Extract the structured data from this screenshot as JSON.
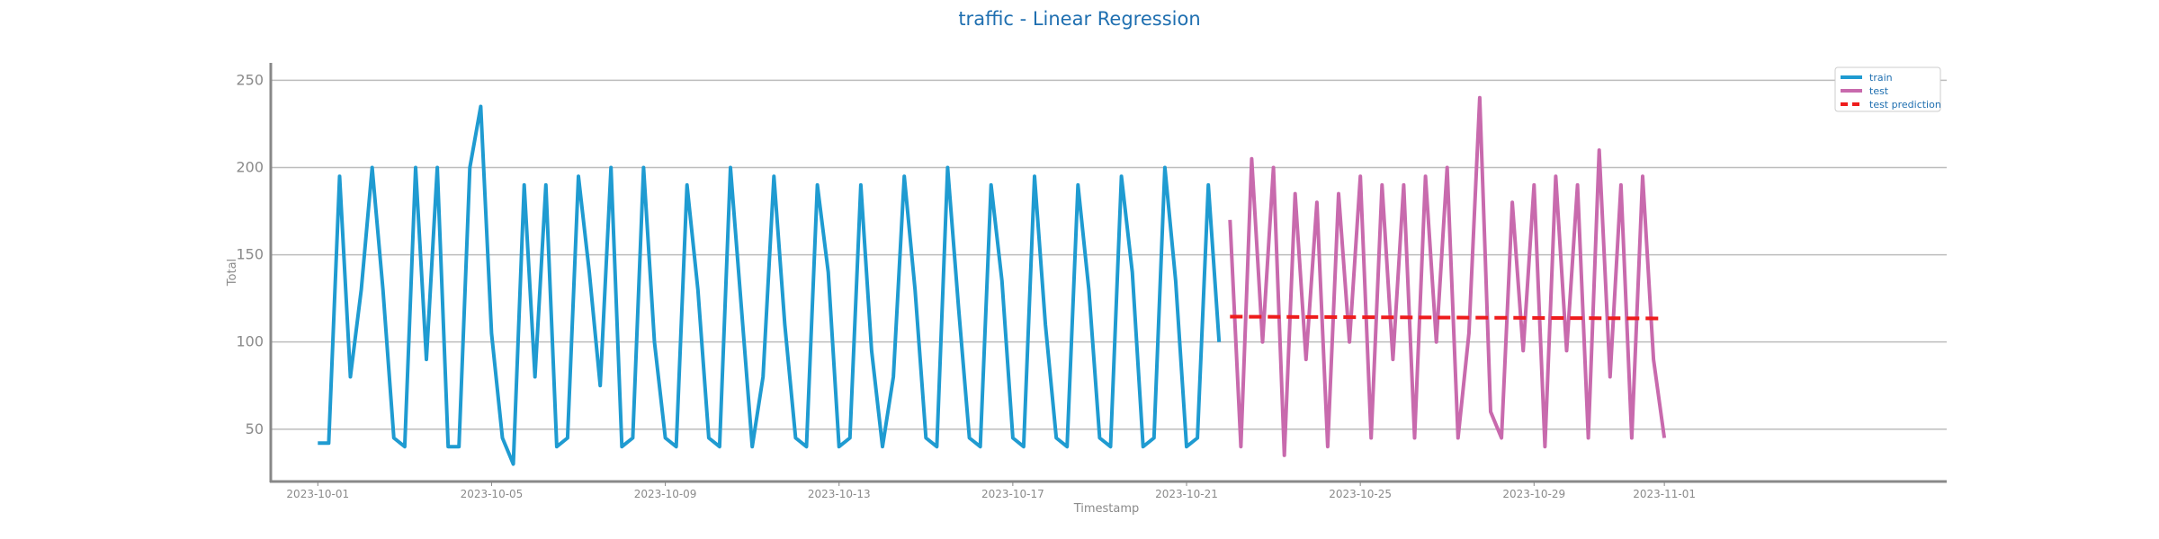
{
  "chart_data": {
    "type": "line",
    "title": "traffic - Linear Regression",
    "xlabel": "Timestamp",
    "ylabel": "Total",
    "ylim": [
      20,
      260
    ],
    "xlim": [
      "2023-09-29T22:00",
      "2023-11-07T12:00"
    ],
    "x_ticks": [
      "2023-10-01",
      "2023-10-05",
      "2023-10-09",
      "2023-10-13",
      "2023-10-17",
      "2023-10-21",
      "2023-10-25",
      "2023-10-29",
      "2023-11-01"
    ],
    "y_ticks": [
      50,
      100,
      150,
      200,
      250
    ],
    "grid": "horizontal",
    "legend_position": "top-right",
    "colors": {
      "train": "#1f9bd1",
      "test": "#c86aad",
      "prediction": "#ee1c1c",
      "grid": "#bdbdbd",
      "axis": "#888888",
      "title": "#1f6fb0"
    },
    "series": [
      {
        "name": "train",
        "style": "solid",
        "x": [
          "2023-10-01T00:00",
          "2023-10-01T06:00",
          "2023-10-01T12:00",
          "2023-10-01T18:00",
          "2023-10-02T00:00",
          "2023-10-02T06:00",
          "2023-10-02T12:00",
          "2023-10-02T18:00",
          "2023-10-03T00:00",
          "2023-10-03T06:00",
          "2023-10-03T12:00",
          "2023-10-03T18:00",
          "2023-10-04T00:00",
          "2023-10-04T06:00",
          "2023-10-04T12:00",
          "2023-10-04T18:00",
          "2023-10-05T00:00",
          "2023-10-05T06:00",
          "2023-10-05T12:00",
          "2023-10-05T18:00",
          "2023-10-06T00:00",
          "2023-10-06T06:00",
          "2023-10-06T12:00",
          "2023-10-06T18:00",
          "2023-10-07T00:00",
          "2023-10-07T06:00",
          "2023-10-07T12:00",
          "2023-10-07T18:00",
          "2023-10-08T00:00",
          "2023-10-08T06:00",
          "2023-10-08T12:00",
          "2023-10-08T18:00",
          "2023-10-09T00:00",
          "2023-10-09T06:00",
          "2023-10-09T12:00",
          "2023-10-09T18:00",
          "2023-10-10T00:00",
          "2023-10-10T06:00",
          "2023-10-10T12:00",
          "2023-10-10T18:00",
          "2023-10-11T00:00",
          "2023-10-11T06:00",
          "2023-10-11T12:00",
          "2023-10-11T18:00",
          "2023-10-12T00:00",
          "2023-10-12T06:00",
          "2023-10-12T12:00",
          "2023-10-12T18:00",
          "2023-10-13T00:00",
          "2023-10-13T06:00",
          "2023-10-13T12:00",
          "2023-10-13T18:00",
          "2023-10-14T00:00",
          "2023-10-14T06:00",
          "2023-10-14T12:00",
          "2023-10-14T18:00",
          "2023-10-15T00:00",
          "2023-10-15T06:00",
          "2023-10-15T12:00",
          "2023-10-15T18:00",
          "2023-10-16T00:00",
          "2023-10-16T06:00",
          "2023-10-16T12:00",
          "2023-10-16T18:00",
          "2023-10-17T00:00",
          "2023-10-17T06:00",
          "2023-10-17T12:00",
          "2023-10-17T18:00",
          "2023-10-18T00:00",
          "2023-10-18T06:00",
          "2023-10-18T12:00",
          "2023-10-18T18:00",
          "2023-10-19T00:00",
          "2023-10-19T06:00",
          "2023-10-19T12:00",
          "2023-10-19T18:00",
          "2023-10-20T00:00",
          "2023-10-20T06:00",
          "2023-10-20T12:00",
          "2023-10-20T18:00",
          "2023-10-21T00:00",
          "2023-10-21T06:00",
          "2023-10-21T12:00",
          "2023-10-21T18:00"
        ],
        "values": [
          42,
          42,
          195,
          80,
          130,
          200,
          130,
          45,
          40,
          200,
          90,
          200,
          40,
          40,
          200,
          235,
          105,
          45,
          30,
          190,
          80,
          190,
          40,
          45,
          195,
          140,
          75,
          200,
          40,
          45,
          200,
          100,
          45,
          40,
          190,
          130,
          45,
          40,
          200,
          120,
          40,
          80,
          195,
          110,
          45,
          40,
          190,
          140,
          40,
          45,
          190,
          95,
          40,
          80,
          195,
          130,
          45,
          40,
          200,
          120,
          45,
          40,
          190,
          135,
          45,
          40,
          195,
          110,
          45,
          40,
          190,
          130,
          45,
          40,
          195,
          140,
          40,
          45,
          200,
          135,
          40,
          45,
          190,
          100
        ]
      },
      {
        "name": "test",
        "style": "solid",
        "x": [
          "2023-10-22T00:00",
          "2023-10-22T06:00",
          "2023-10-22T12:00",
          "2023-10-22T18:00",
          "2023-10-23T00:00",
          "2023-10-23T06:00",
          "2023-10-23T12:00",
          "2023-10-23T18:00",
          "2023-10-24T00:00",
          "2023-10-24T06:00",
          "2023-10-24T12:00",
          "2023-10-24T18:00",
          "2023-10-25T00:00",
          "2023-10-25T06:00",
          "2023-10-25T12:00",
          "2023-10-25T18:00",
          "2023-10-26T00:00",
          "2023-10-26T06:00",
          "2023-10-26T12:00",
          "2023-10-26T18:00",
          "2023-10-27T00:00",
          "2023-10-27T06:00",
          "2023-10-27T12:00",
          "2023-10-27T18:00",
          "2023-10-28T00:00",
          "2023-10-28T06:00",
          "2023-10-28T12:00",
          "2023-10-28T18:00",
          "2023-10-29T00:00",
          "2023-10-29T06:00",
          "2023-10-29T12:00",
          "2023-10-29T18:00",
          "2023-10-30T00:00",
          "2023-10-30T06:00",
          "2023-10-30T12:00",
          "2023-10-30T18:00",
          "2023-10-31T00:00",
          "2023-10-31T06:00",
          "2023-10-31T12:00",
          "2023-10-31T18:00",
          "2023-11-01T00:00"
        ],
        "values": [
          170,
          40,
          205,
          100,
          200,
          35,
          185,
          90,
          180,
          40,
          185,
          100,
          195,
          45,
          190,
          90,
          190,
          45,
          195,
          100,
          200,
          45,
          105,
          240,
          60,
          45,
          180,
          95,
          190,
          40,
          195,
          95,
          190,
          45,
          210,
          80,
          190,
          45,
          195,
          90,
          45
        ]
      },
      {
        "name": "test prediction",
        "style": "dashed",
        "x": [
          "2023-10-22T00:00",
          "2023-10-24T00:00",
          "2023-10-26T00:00",
          "2023-10-28T00:00",
          "2023-10-30T00:00",
          "2023-11-01T00:00"
        ],
        "values": [
          114.5,
          114.3,
          114.1,
          113.9,
          113.7,
          113.5
        ]
      }
    ]
  }
}
